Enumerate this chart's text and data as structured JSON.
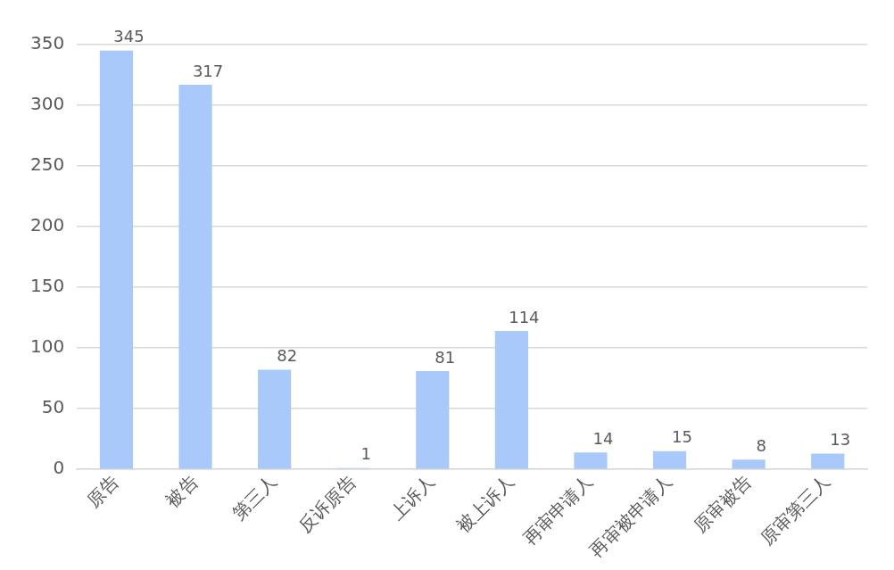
{
  "chart_data": {
    "type": "bar",
    "categories": [
      "原告",
      "被告",
      "第三人",
      "反诉原告",
      "上诉人",
      "被上诉人",
      "再审申请人",
      "再审被申请人",
      "原审被告",
      "原审第三人"
    ],
    "values": [
      345,
      317,
      82,
      1,
      81,
      114,
      14,
      15,
      8,
      13
    ],
    "color": "#a9c9fb",
    "ylim": [
      0,
      350
    ],
    "yticks": [
      0,
      50,
      100,
      150,
      200,
      250,
      300,
      350
    ],
    "grid": "y",
    "data_labels": true,
    "legend": false
  }
}
